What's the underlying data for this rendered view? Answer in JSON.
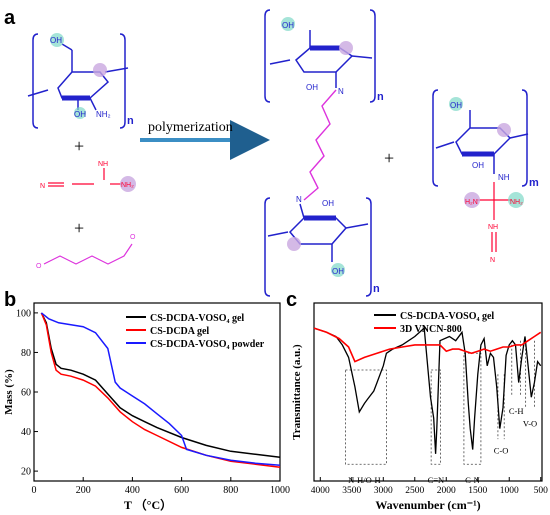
{
  "panel_labels": {
    "a": "a",
    "b": "b",
    "c": "c"
  },
  "scheme": {
    "arrow_label": "polymerization",
    "plus": "+",
    "subscript_n": "n",
    "subscript_m": "m",
    "atoms": {
      "OH": "OH",
      "NH2": "NH₂",
      "N": "N",
      "NH": "NH",
      "O": "O",
      "H2N": "H₂N"
    }
  },
  "colors": {
    "polymer": "#2222cc",
    "dcda": "#ff0033",
    "glutaraldehyde": "#dd33dd",
    "teal_highlight": "#7fd8c8",
    "purple_highlight": "#c9a8e0",
    "arrow": "#3b8ec4",
    "tga_black": "#000000",
    "tga_red": "#ff0000",
    "tga_blue": "#1a1aff",
    "ftir_black": "#000000",
    "ftir_red": "#ff0000"
  },
  "chart_data": [
    {
      "type": "line",
      "xlabel": "T （°C）",
      "ylabel": "Mass (%)",
      "xlim": [
        0,
        1000
      ],
      "ylim": [
        15,
        105
      ],
      "xticks": [
        "0",
        "200",
        "400",
        "600",
        "800",
        "1000"
      ],
      "yticks": [
        "20",
        "40",
        "60",
        "80",
        "100"
      ],
      "legend_position": "top-right",
      "series": [
        {
          "name": "CS-DCDA-VOSO4 gel",
          "color": "#000000",
          "x": [
            30,
            50,
            70,
            90,
            110,
            150,
            200,
            250,
            300,
            350,
            400,
            450,
            500,
            600,
            700,
            800,
            900,
            1000
          ],
          "y": [
            100,
            95,
            82,
            74,
            72,
            71,
            69,
            66,
            59,
            52,
            48,
            45,
            42,
            37,
            33,
            30,
            28.5,
            27
          ]
        },
        {
          "name": "CS-DCDA gel",
          "color": "#ff0000",
          "x": [
            30,
            50,
            70,
            90,
            110,
            150,
            200,
            250,
            300,
            350,
            400,
            450,
            500,
            600,
            700,
            800,
            900,
            1000
          ],
          "y": [
            100,
            94,
            80,
            71,
            69,
            68,
            66,
            63,
            57,
            50,
            45,
            41,
            38,
            32,
            28,
            25,
            23.5,
            22
          ]
        },
        {
          "name": "CS-DCDA-VOSO4 powder",
          "color": "#1a1aff",
          "x": [
            30,
            60,
            100,
            150,
            200,
            250,
            300,
            330,
            350,
            400,
            450,
            500,
            550,
            600,
            620,
            700,
            800,
            900,
            1000
          ],
          "y": [
            100,
            97,
            95,
            94,
            93,
            90,
            82,
            65,
            62,
            58,
            54,
            49,
            44,
            38,
            31,
            28,
            25.5,
            24,
            23
          ]
        }
      ],
      "legend": [
        "CS-DCDA-VOSO₄ gel",
        "CS-DCDA gel",
        "CS-DCDA-VOSO₄ powder"
      ]
    },
    {
      "type": "line",
      "xlabel": "Wavenumber (cm⁻¹)",
      "ylabel": "Transmittance (a.u.)",
      "xlim": [
        4000,
        500
      ],
      "xticks": [
        "4000",
        "3500",
        "3000",
        "2500",
        "2000",
        "1500",
        "1000",
        "500"
      ],
      "yticks": [],
      "legend_position": "top-right",
      "series": [
        {
          "name": "CS-DCDA-VOSO4 gel",
          "color": "#000000",
          "x": [
            4100,
            3900,
            3750,
            3650,
            3550,
            3450,
            3380,
            3300,
            3250,
            3150,
            3100,
            3000,
            2950,
            2850,
            2700,
            2500,
            2350,
            2250,
            2200,
            2170,
            2150,
            2100,
            1950,
            1850,
            1750,
            1700,
            1650,
            1620,
            1580,
            1550,
            1500,
            1450,
            1400,
            1350,
            1300,
            1250,
            1200,
            1150,
            1100,
            1050,
            1000,
            950,
            900,
            850,
            800,
            750,
            700,
            650,
            600,
            550,
            500
          ],
          "y": [
            88,
            86,
            84,
            80,
            74,
            60,
            48,
            52,
            54,
            58,
            62,
            70,
            76,
            78,
            80,
            84,
            88,
            55,
            45,
            28,
            40,
            82,
            84,
            82,
            86,
            76,
            52,
            40,
            30,
            45,
            66,
            80,
            83,
            70,
            76,
            74,
            60,
            40,
            50,
            75,
            80,
            82,
            80,
            62,
            74,
            84,
            70,
            55,
            62,
            72,
            70
          ]
        },
        {
          "name": "3D VNCN-800",
          "color": "#ff0000",
          "x": [
            4100,
            3900,
            3700,
            3550,
            3450,
            3300,
            3100,
            2900,
            2700,
            2500,
            2300,
            2100,
            2000,
            1900,
            1800,
            1700,
            1600,
            1500,
            1400,
            1300,
            1200,
            1100,
            1000,
            900,
            800,
            700,
            600,
            500
          ],
          "y": [
            88,
            86,
            83,
            79,
            72,
            74,
            76,
            78,
            79,
            80,
            80,
            80,
            77,
            78,
            78,
            77,
            76,
            77,
            78,
            77,
            78,
            79,
            79,
            80,
            80,
            82,
            84,
            86
          ]
        }
      ],
      "legend": [
        "CS-DCDA-VOSO₄ gel",
        "3D VNCN-800"
      ],
      "annotations": [
        "N-H/O-H",
        "C≡N",
        "C-N",
        "C-O",
        "C-H",
        "V-O"
      ]
    }
  ]
}
